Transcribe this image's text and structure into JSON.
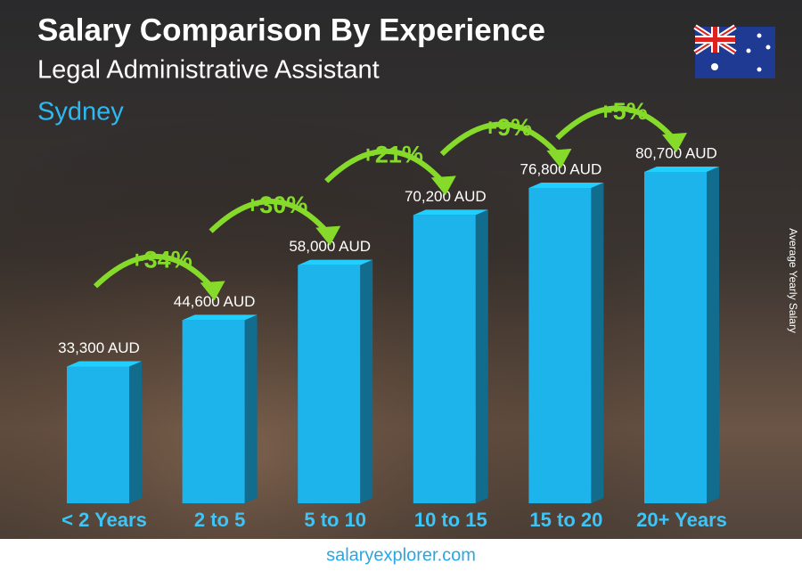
{
  "chart_data": {
    "type": "bar",
    "title": "Salary Comparison By Experience",
    "subtitle": "Legal Administrative Assistant",
    "location": "Sydney",
    "y_label": "Average Yearly Salary",
    "categories": [
      "< 2 Years",
      "2 to 5",
      "5 to 10",
      "10 to 15",
      "15 to 20",
      "20+ Years"
    ],
    "values": [
      33300,
      44600,
      58000,
      70200,
      76800,
      80700
    ],
    "value_labels": [
      "33,300 AUD",
      "44,600 AUD",
      "58,000 AUD",
      "70,200 AUD",
      "76,800 AUD",
      "80,700 AUD"
    ],
    "changes": [
      "+34%",
      "+30%",
      "+21%",
      "+9%",
      "+5%"
    ],
    "color": "#1db4ec",
    "change_color": "#86db2a",
    "footer": "salaryexplorer.com"
  }
}
